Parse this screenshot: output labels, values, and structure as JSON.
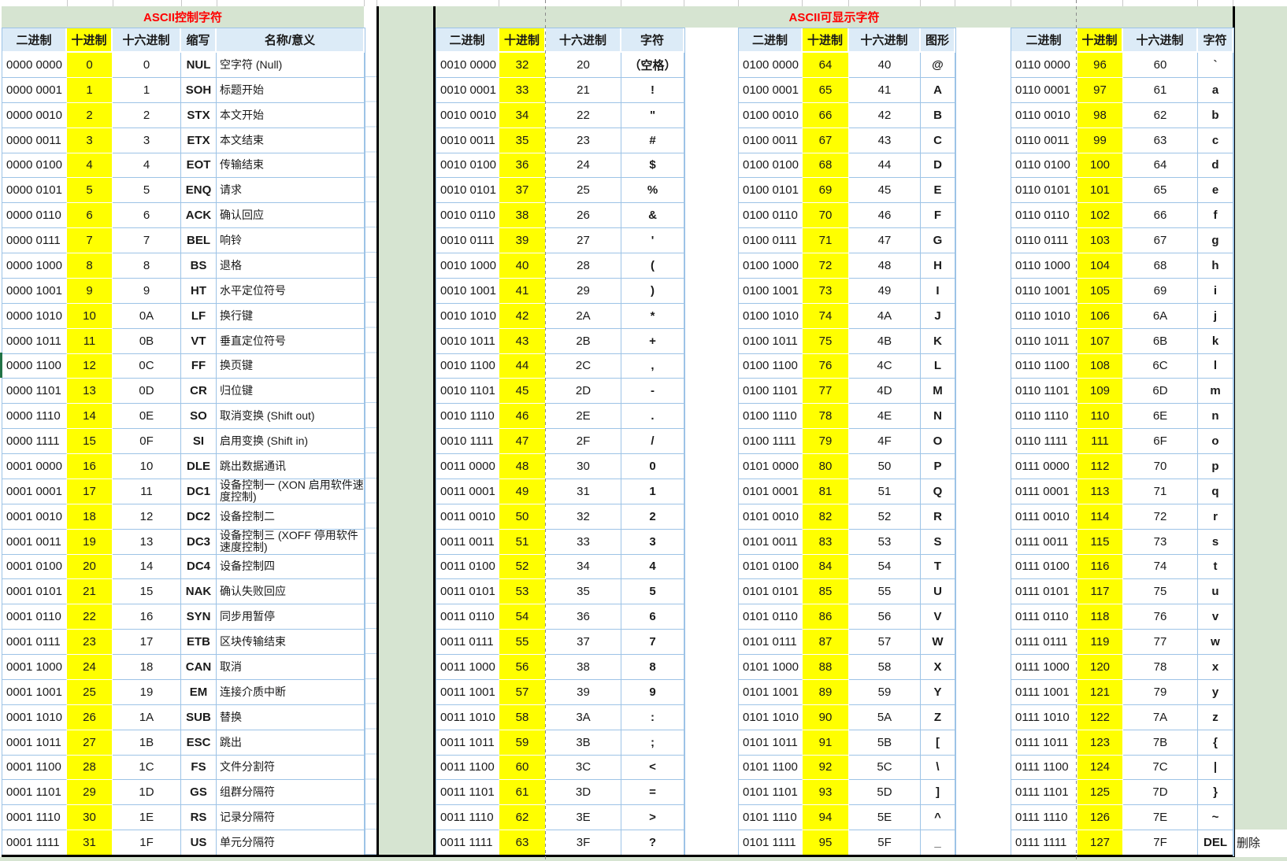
{
  "page": {
    "control_title": "ASCII控制字符",
    "printable_title": "ASCII可显示字符",
    "del_note": "删除"
  },
  "colors": {
    "title_green": "#D6E4D1",
    "header_blue": "#DCEBF7",
    "highlight_yellow": "#FFFF00",
    "title_red": "#FF0000",
    "grid_blue": "#9DC3E6"
  },
  "headers": {
    "binary": "二进制",
    "decimal": "十进制",
    "hex": "十六进制",
    "abbr": "缩写",
    "name": "名称/意义",
    "char": "字符",
    "graph": "图形"
  },
  "control_rows": [
    [
      "0000 0000",
      "0",
      "0",
      "NUL",
      "空字符 (Null)"
    ],
    [
      "0000 0001",
      "1",
      "1",
      "SOH",
      "标题开始"
    ],
    [
      "0000 0010",
      "2",
      "2",
      "STX",
      "本文开始"
    ],
    [
      "0000 0011",
      "3",
      "3",
      "ETX",
      "本文结束"
    ],
    [
      "0000 0100",
      "4",
      "4",
      "EOT",
      "传输结束"
    ],
    [
      "0000 0101",
      "5",
      "5",
      "ENQ",
      "请求"
    ],
    [
      "0000 0110",
      "6",
      "6",
      "ACK",
      "确认回应"
    ],
    [
      "0000 0111",
      "7",
      "7",
      "BEL",
      "响铃"
    ],
    [
      "0000 1000",
      "8",
      "8",
      "BS",
      "退格"
    ],
    [
      "0000 1001",
      "9",
      "9",
      "HT",
      "水平定位符号"
    ],
    [
      "0000 1010",
      "10",
      "0A",
      "LF",
      "换行键"
    ],
    [
      "0000 1011",
      "11",
      "0B",
      "VT",
      "垂直定位符号"
    ],
    [
      "0000 1100",
      "12",
      "0C",
      "FF",
      "换页键"
    ],
    [
      "0000 1101",
      "13",
      "0D",
      "CR",
      "归位键"
    ],
    [
      "0000 1110",
      "14",
      "0E",
      "SO",
      "取消变换 (Shift out)"
    ],
    [
      "0000 1111",
      "15",
      "0F",
      "SI",
      "启用变换 (Shift in)"
    ],
    [
      "0001 0000",
      "16",
      "10",
      "DLE",
      "跳出数据通讯"
    ],
    [
      "0001 0001",
      "17",
      "11",
      "DC1",
      "设备控制一 (XON 启用软件速度控制)"
    ],
    [
      "0001 0010",
      "18",
      "12",
      "DC2",
      "设备控制二"
    ],
    [
      "0001 0011",
      "19",
      "13",
      "DC3",
      "设备控制三 (XOFF 停用软件速度控制)"
    ],
    [
      "0001 0100",
      "20",
      "14",
      "DC4",
      "设备控制四"
    ],
    [
      "0001 0101",
      "21",
      "15",
      "NAK",
      "确认失败回应"
    ],
    [
      "0001 0110",
      "22",
      "16",
      "SYN",
      "同步用暂停"
    ],
    [
      "0001 0111",
      "23",
      "17",
      "ETB",
      "区块传输结束"
    ],
    [
      "0001 1000",
      "24",
      "18",
      "CAN",
      "取消"
    ],
    [
      "0001 1001",
      "25",
      "19",
      "EM",
      "连接介质中断"
    ],
    [
      "0001 1010",
      "26",
      "1A",
      "SUB",
      "替换"
    ],
    [
      "0001 1011",
      "27",
      "1B",
      "ESC",
      "跳出"
    ],
    [
      "0001 1100",
      "28",
      "1C",
      "FS",
      "文件分割符"
    ],
    [
      "0001 1101",
      "29",
      "1D",
      "GS",
      "组群分隔符"
    ],
    [
      "0001 1110",
      "30",
      "1E",
      "RS",
      "记录分隔符"
    ],
    [
      "0001 1111",
      "31",
      "1F",
      "US",
      "单元分隔符"
    ]
  ],
  "printable_rows_32": [
    [
      "0010 0000",
      "32",
      "20",
      "（空格）"
    ],
    [
      "0010 0001",
      "33",
      "21",
      "!"
    ],
    [
      "0010 0010",
      "34",
      "22",
      "\""
    ],
    [
      "0010 0011",
      "35",
      "23",
      "#"
    ],
    [
      "0010 0100",
      "36",
      "24",
      "$"
    ],
    [
      "0010 0101",
      "37",
      "25",
      "%"
    ],
    [
      "0010 0110",
      "38",
      "26",
      "&"
    ],
    [
      "0010 0111",
      "39",
      "27",
      "'"
    ],
    [
      "0010 1000",
      "40",
      "28",
      "("
    ],
    [
      "0010 1001",
      "41",
      "29",
      ")"
    ],
    [
      "0010 1010",
      "42",
      "2A",
      "*"
    ],
    [
      "0010 1011",
      "43",
      "2B",
      "+"
    ],
    [
      "0010 1100",
      "44",
      "2C",
      ","
    ],
    [
      "0010 1101",
      "45",
      "2D",
      "-"
    ],
    [
      "0010 1110",
      "46",
      "2E",
      "."
    ],
    [
      "0010 1111",
      "47",
      "2F",
      "/"
    ],
    [
      "0011 0000",
      "48",
      "30",
      "0"
    ],
    [
      "0011 0001",
      "49",
      "31",
      "1"
    ],
    [
      "0011 0010",
      "50",
      "32",
      "2"
    ],
    [
      "0011 0011",
      "51",
      "33",
      "3"
    ],
    [
      "0011 0100",
      "52",
      "34",
      "4"
    ],
    [
      "0011 0101",
      "53",
      "35",
      "5"
    ],
    [
      "0011 0110",
      "54",
      "36",
      "6"
    ],
    [
      "0011 0111",
      "55",
      "37",
      "7"
    ],
    [
      "0011 1000",
      "56",
      "38",
      "8"
    ],
    [
      "0011 1001",
      "57",
      "39",
      "9"
    ],
    [
      "0011 1010",
      "58",
      "3A",
      ":"
    ],
    [
      "0011 1011",
      "59",
      "3B",
      ";"
    ],
    [
      "0011 1100",
      "60",
      "3C",
      "<"
    ],
    [
      "0011 1101",
      "61",
      "3D",
      "="
    ],
    [
      "0011 1110",
      "62",
      "3E",
      ">"
    ],
    [
      "0011 1111",
      "63",
      "3F",
      "?"
    ]
  ],
  "printable_rows_64": [
    [
      "0100 0000",
      "64",
      "40",
      "@"
    ],
    [
      "0100 0001",
      "65",
      "41",
      "A"
    ],
    [
      "0100 0010",
      "66",
      "42",
      "B"
    ],
    [
      "0100 0011",
      "67",
      "43",
      "C"
    ],
    [
      "0100 0100",
      "68",
      "44",
      "D"
    ],
    [
      "0100 0101",
      "69",
      "45",
      "E"
    ],
    [
      "0100 0110",
      "70",
      "46",
      "F"
    ],
    [
      "0100 0111",
      "71",
      "47",
      "G"
    ],
    [
      "0100 1000",
      "72",
      "48",
      "H"
    ],
    [
      "0100 1001",
      "73",
      "49",
      "I"
    ],
    [
      "0100 1010",
      "74",
      "4A",
      "J"
    ],
    [
      "0100 1011",
      "75",
      "4B",
      "K"
    ],
    [
      "0100 1100",
      "76",
      "4C",
      "L"
    ],
    [
      "0100 1101",
      "77",
      "4D",
      "M"
    ],
    [
      "0100 1110",
      "78",
      "4E",
      "N"
    ],
    [
      "0100 1111",
      "79",
      "4F",
      "O"
    ],
    [
      "0101 0000",
      "80",
      "50",
      "P"
    ],
    [
      "0101 0001",
      "81",
      "51",
      "Q"
    ],
    [
      "0101 0010",
      "82",
      "52",
      "R"
    ],
    [
      "0101 0011",
      "83",
      "53",
      "S"
    ],
    [
      "0101 0100",
      "84",
      "54",
      "T"
    ],
    [
      "0101 0101",
      "85",
      "55",
      "U"
    ],
    [
      "0101 0110",
      "86",
      "56",
      "V"
    ],
    [
      "0101 0111",
      "87",
      "57",
      "W"
    ],
    [
      "0101 1000",
      "88",
      "58",
      "X"
    ],
    [
      "0101 1001",
      "89",
      "59",
      "Y"
    ],
    [
      "0101 1010",
      "90",
      "5A",
      "Z"
    ],
    [
      "0101 1011",
      "91",
      "5B",
      "["
    ],
    [
      "0101 1100",
      "92",
      "5C",
      "\\"
    ],
    [
      "0101 1101",
      "93",
      "5D",
      "]"
    ],
    [
      "0101 1110",
      "94",
      "5E",
      "^"
    ],
    [
      "0101 1111",
      "95",
      "5F",
      "_"
    ]
  ],
  "printable_rows_96": [
    [
      "0110 0000",
      "96",
      "60",
      "`"
    ],
    [
      "0110 0001",
      "97",
      "61",
      "a"
    ],
    [
      "0110 0010",
      "98",
      "62",
      "b"
    ],
    [
      "0110 0011",
      "99",
      "63",
      "c"
    ],
    [
      "0110 0100",
      "100",
      "64",
      "d"
    ],
    [
      "0110 0101",
      "101",
      "65",
      "e"
    ],
    [
      "0110 0110",
      "102",
      "66",
      "f"
    ],
    [
      "0110 0111",
      "103",
      "67",
      "g"
    ],
    [
      "0110 1000",
      "104",
      "68",
      "h"
    ],
    [
      "0110 1001",
      "105",
      "69",
      "i"
    ],
    [
      "0110 1010",
      "106",
      "6A",
      "j"
    ],
    [
      "0110 1011",
      "107",
      "6B",
      "k"
    ],
    [
      "0110 1100",
      "108",
      "6C",
      "l"
    ],
    [
      "0110 1101",
      "109",
      "6D",
      "m"
    ],
    [
      "0110 1110",
      "110",
      "6E",
      "n"
    ],
    [
      "0110 1111",
      "111",
      "6F",
      "o"
    ],
    [
      "0111 0000",
      "112",
      "70",
      "p"
    ],
    [
      "0111 0001",
      "113",
      "71",
      "q"
    ],
    [
      "0111 0010",
      "114",
      "72",
      "r"
    ],
    [
      "0111 0011",
      "115",
      "73",
      "s"
    ],
    [
      "0111 0100",
      "116",
      "74",
      "t"
    ],
    [
      "0111 0101",
      "117",
      "75",
      "u"
    ],
    [
      "0111 0110",
      "118",
      "76",
      "v"
    ],
    [
      "0111 0111",
      "119",
      "77",
      "w"
    ],
    [
      "0111 1000",
      "120",
      "78",
      "x"
    ],
    [
      "0111 1001",
      "121",
      "79",
      "y"
    ],
    [
      "0111 1010",
      "122",
      "7A",
      "z"
    ],
    [
      "0111 1011",
      "123",
      "7B",
      "{"
    ],
    [
      "0111 1100",
      "124",
      "7C",
      "|"
    ],
    [
      "0111 1101",
      "125",
      "7D",
      "}"
    ],
    [
      "0111 1110",
      "126",
      "7E",
      "~"
    ],
    [
      "0111 1111",
      "127",
      "7F",
      "DEL"
    ]
  ]
}
